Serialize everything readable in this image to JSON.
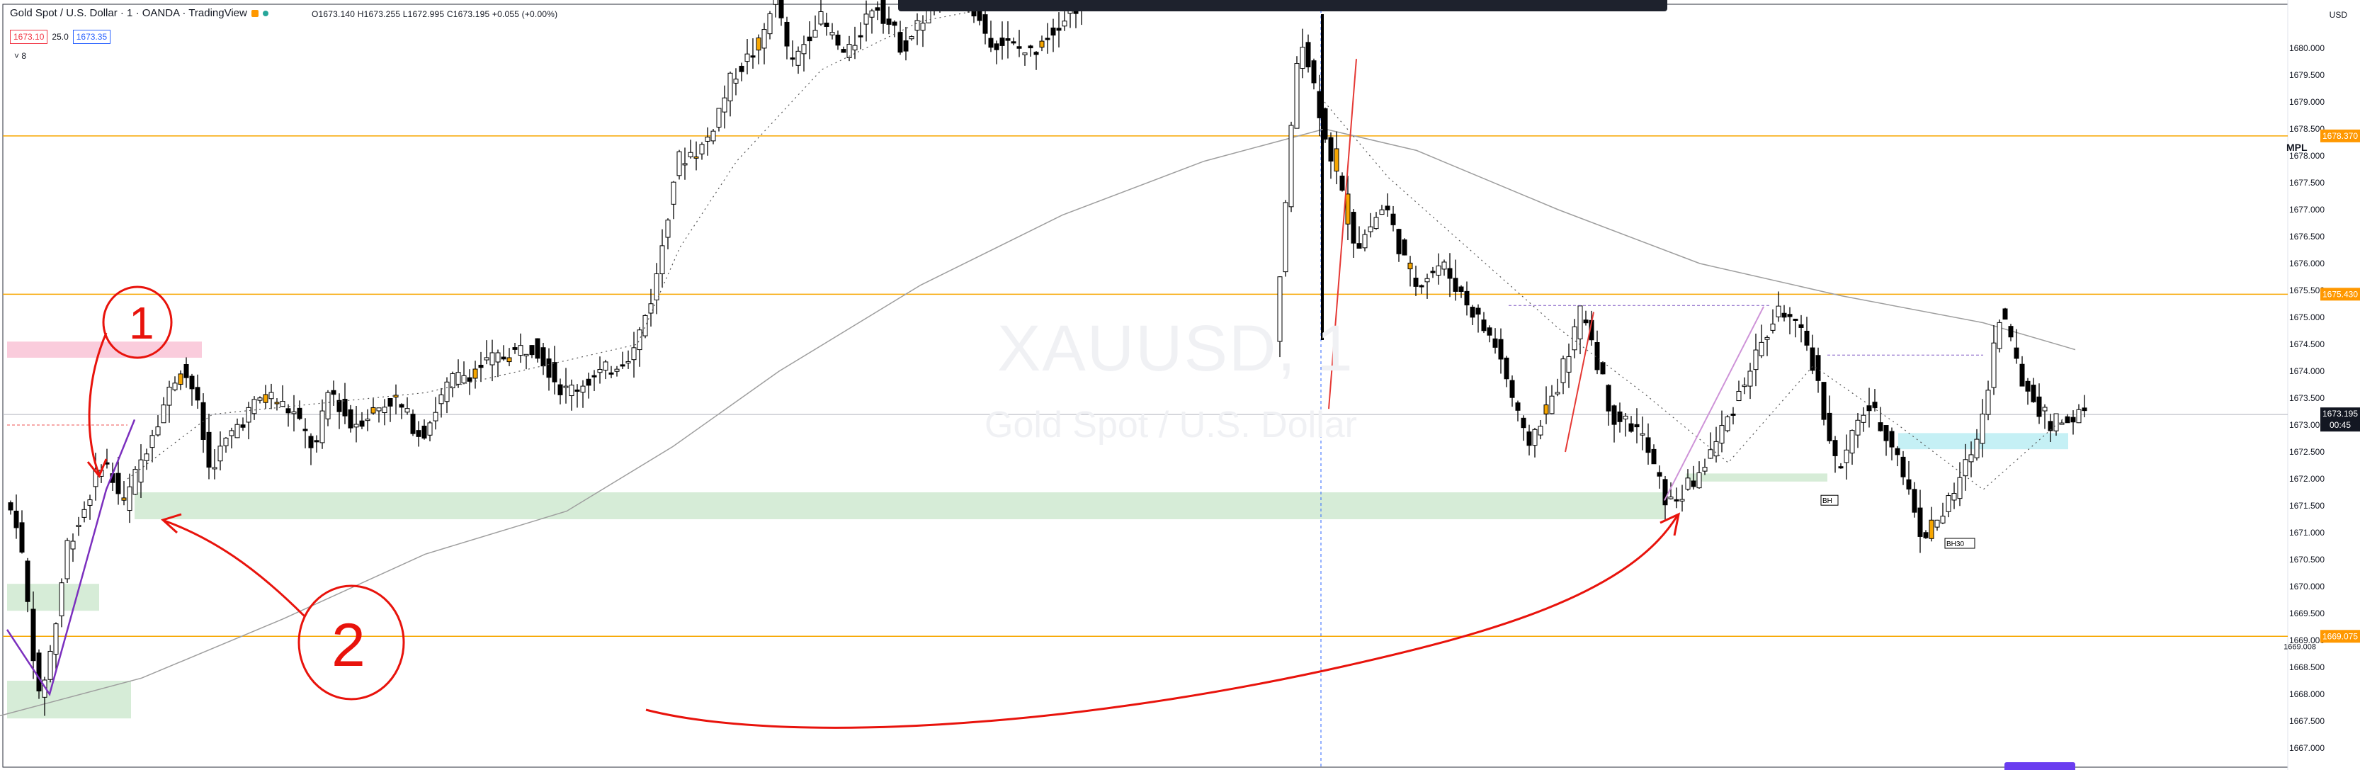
{
  "header": {
    "title": "Gold Spot / U.S. Dollar · 1 · OANDA · TradingView",
    "ohlc": "O1673.140 H1673.255 L1672.995 C1673.195 +0.055 (+0.00%)",
    "sell_price": "1673.10",
    "spread": "25.0",
    "buy_price": "1673.35",
    "indicator_toggle": "˅ 8"
  },
  "currency": "USD",
  "watermark": {
    "symbol": "XAUUSD, 1",
    "name": "Gold Spot / U.S. Dollar"
  },
  "mpl_label": "MPL",
  "current_price": {
    "value": "1673.195",
    "countdown": "00:45"
  },
  "price_tags": [
    {
      "text": "1678.370",
      "price": 1678.37
    },
    {
      "text": "1675.430",
      "price": 1675.43
    },
    {
      "text": "1669.075",
      "price": 1669.075
    }
  ],
  "level_text_1669008": "1669.008",
  "annotations": {
    "one": "1",
    "two": "2"
  },
  "box_labels": {
    "bh": "BH",
    "bh30": "BH30"
  },
  "colors": {
    "up": "#ffffff",
    "down": "#000000",
    "highlight": "#f7a600",
    "hline": "#f7a600",
    "arrow": "#e8130c",
    "zone_green": "#c8e6c9",
    "zone_pink": "#f8bbd0",
    "zone_cyan": "#b2ebf2"
  },
  "chart_data": {
    "type": "candlestick",
    "symbol": "XAUUSD",
    "timeframe": "1",
    "ylim": [
      1666.9,
      1681.6
    ],
    "y_ticks": [
      "1680.000",
      "1679.500",
      "1679.000",
      "1678.500",
      "1678.000",
      "1677.500",
      "1677.000",
      "1676.500",
      "1676.000",
      "1675.500",
      "1675.000",
      "1674.500",
      "1674.000",
      "1673.500",
      "1673.000",
      "1672.500",
      "1672.000",
      "1671.500",
      "1671.000",
      "1670.500",
      "1670.000",
      "1669.500",
      "1669.000",
      "1668.500",
      "1668.000",
      "1667.500",
      "1667.000"
    ],
    "horizontal_levels": [
      1678.37,
      1675.43,
      1669.075,
      1673.195
    ],
    "price_path": [
      [
        0,
        1671.8
      ],
      [
        30,
        1671.2
      ],
      [
        60,
        1667.9
      ],
      [
        80,
        1669.0
      ],
      [
        100,
        1670.8
      ],
      [
        120,
        1671.3
      ],
      [
        150,
        1672.4
      ],
      [
        180,
        1671.5
      ],
      [
        220,
        1672.9
      ],
      [
        260,
        1674.1
      ],
      [
        280,
        1673.6
      ],
      [
        300,
        1672.2
      ],
      [
        340,
        1673.0
      ],
      [
        380,
        1673.6
      ],
      [
        420,
        1673.2
      ],
      [
        450,
        1672.5
      ],
      [
        470,
        1673.7
      ],
      [
        500,
        1673.0
      ],
      [
        560,
        1673.5
      ],
      [
        600,
        1672.8
      ],
      [
        640,
        1673.8
      ],
      [
        700,
        1674.2
      ],
      [
        760,
        1674.5
      ],
      [
        800,
        1673.6
      ],
      [
        860,
        1674.0
      ],
      [
        900,
        1674.4
      ],
      [
        930,
        1675.6
      ],
      [
        960,
        1677.9
      ],
      [
        1000,
        1678.2
      ],
      [
        1040,
        1679.5
      ],
      [
        1080,
        1680.1
      ],
      [
        1100,
        1681.2
      ],
      [
        1120,
        1679.6
      ],
      [
        1160,
        1680.6
      ],
      [
        1200,
        1679.8
      ],
      [
        1240,
        1680.9
      ],
      [
        1280,
        1680.0
      ],
      [
        1320,
        1680.8
      ],
      [
        1360,
        1681.2
      ],
      [
        1400,
        1680.2
      ],
      [
        1460,
        1679.9
      ],
      [
        1500,
        1680.5
      ],
      [
        1560,
        1681.2
      ],
      [
        1620,
        1681.5
      ],
      [
        1760,
        1681.4
      ],
      [
        1800,
        1673.8
      ],
      [
        1840,
        1680.4
      ],
      [
        1880,
        1678.2
      ],
      [
        1920,
        1676.3
      ],
      [
        1960,
        1677.1
      ],
      [
        2000,
        1675.6
      ],
      [
        2040,
        1676.0
      ],
      [
        2080,
        1675.2
      ],
      [
        2120,
        1674.4
      ],
      [
        2160,
        1672.6
      ],
      [
        2200,
        1673.6
      ],
      [
        2240,
        1675.2
      ],
      [
        2280,
        1673.2
      ],
      [
        2320,
        1672.9
      ],
      [
        2360,
        1671.5
      ],
      [
        2400,
        1672.0
      ],
      [
        2440,
        1673.0
      ],
      [
        2480,
        1674.2
      ],
      [
        2520,
        1675.2
      ],
      [
        2560,
        1674.4
      ],
      [
        2600,
        1672.1
      ],
      [
        2640,
        1673.4
      ],
      [
        2680,
        1672.6
      ],
      [
        2720,
        1670.9
      ],
      [
        2760,
        1671.6
      ],
      [
        2800,
        1672.9
      ],
      [
        2830,
        1675.2
      ],
      [
        2860,
        1673.8
      ],
      [
        2900,
        1673.0
      ],
      [
        2940,
        1673.195
      ]
    ]
  }
}
